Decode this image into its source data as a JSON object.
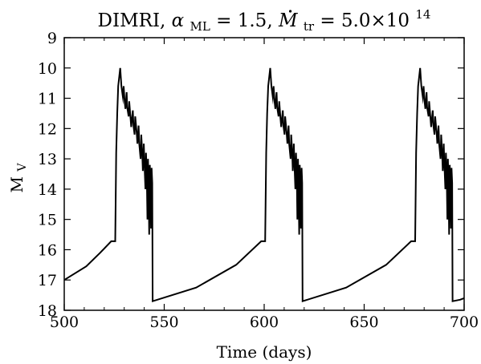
{
  "chart_data": {
    "type": "line",
    "title": {
      "prefix": "DIMRI, ",
      "alpha_sym": "α",
      "alpha_sub": "ML",
      "alpha_val": " = 1.5, ",
      "mdot_sym": "M",
      "mdot_sub": "tr",
      "mdot_val": " = 5.0×10",
      "mdot_exp": "14"
    },
    "xlabel": "Time (days)",
    "ylabel": {
      "main": "M",
      "sub": "V"
    },
    "xlim": [
      500,
      700
    ],
    "ylim": [
      9,
      18
    ],
    "y_inverted": true,
    "xticks": [
      "500",
      "550",
      "600",
      "650",
      "700"
    ],
    "yticks": [
      "9",
      "10",
      "11",
      "12",
      "13",
      "14",
      "15",
      "16",
      "17",
      "18"
    ],
    "grid": false,
    "line_color": "#000000",
    "series": [
      {
        "x": [
          500,
          511,
          518,
          523.5,
          524,
          525.5,
          526,
          526.5,
          527,
          528,
          528.6,
          529.3,
          529.7,
          530.2,
          530.6,
          531.2,
          531.5,
          532.2,
          532.5,
          533.2,
          533.5,
          534.3,
          534.6,
          535.2,
          535.5,
          536.3,
          536.6,
          537.2,
          537.5,
          538.2,
          538.5,
          539,
          539.3,
          539.8,
          540.1,
          540.6,
          540.9,
          541.3,
          541.6,
          541.9,
          542.2,
          542.5,
          542.8,
          543.1,
          543.4,
          543.7,
          544,
          544.2,
          566,
          586,
          598.5,
          599,
          600.5,
          601,
          601.5,
          602,
          603,
          603.6,
          604.3,
          604.7,
          605.2,
          605.6,
          606.2,
          606.5,
          607.2,
          607.5,
          608.2,
          608.5,
          609.3,
          609.6,
          610.2,
          610.5,
          611.3,
          611.6,
          612.2,
          612.5,
          613.2,
          613.5,
          614,
          614.3,
          614.8,
          615.1,
          615.6,
          615.9,
          616.3,
          616.6,
          616.9,
          617.2,
          617.5,
          617.8,
          618.1,
          618.4,
          618.7,
          619,
          619.2,
          641,
          661,
          673.5,
          674,
          675.5,
          676,
          676.5,
          677,
          678,
          678.6,
          679.3,
          679.7,
          680.2,
          680.6,
          681.2,
          681.5,
          682.2,
          682.5,
          683.2,
          683.5,
          684.3,
          684.6,
          685.2,
          685.5,
          686.3,
          686.6,
          687.2,
          687.5,
          688.2,
          688.5,
          689,
          689.3,
          689.8,
          690.1,
          690.6,
          690.9,
          691.3,
          691.6,
          691.9,
          692.2,
          692.5,
          692.8,
          693.1,
          693.4,
          693.7,
          694,
          694.2,
          698,
          700
        ],
        "y": [
          17.0,
          16.55,
          16.1,
          15.72,
          15.72,
          15.72,
          12.8,
          11.5,
          10.6,
          10.0,
          10.6,
          10.95,
          10.6,
          11.1,
          11.35,
          10.8,
          11.3,
          11.6,
          11.1,
          11.7,
          11.95,
          11.4,
          11.9,
          12.2,
          11.6,
          12.2,
          12.5,
          11.9,
          12.5,
          13.0,
          12.2,
          12.8,
          13.4,
          12.5,
          13.1,
          14.0,
          12.8,
          13.5,
          15.0,
          13.0,
          13.8,
          15.5,
          13.2,
          13.9,
          15.3,
          13.3,
          13.8,
          17.7,
          17.25,
          16.5,
          15.72,
          15.72,
          15.72,
          12.8,
          11.5,
          10.6,
          10.0,
          10.6,
          10.95,
          10.6,
          11.1,
          11.35,
          10.8,
          11.3,
          11.6,
          11.1,
          11.7,
          11.95,
          11.4,
          11.9,
          12.2,
          11.6,
          12.2,
          12.5,
          11.9,
          12.5,
          13.0,
          12.2,
          12.8,
          13.4,
          12.5,
          13.1,
          14.0,
          12.8,
          13.5,
          15.0,
          13.0,
          13.8,
          15.5,
          13.2,
          13.9,
          15.3,
          13.3,
          13.8,
          17.7,
          17.25,
          16.5,
          15.72,
          15.72,
          15.72,
          12.8,
          11.5,
          10.6,
          10.0,
          10.6,
          10.95,
          10.6,
          11.1,
          11.35,
          10.8,
          11.3,
          11.6,
          11.1,
          11.7,
          11.95,
          11.4,
          11.9,
          12.2,
          11.6,
          12.2,
          12.5,
          11.9,
          12.5,
          13.0,
          12.2,
          12.8,
          13.4,
          12.5,
          13.1,
          14.0,
          12.8,
          13.5,
          15.0,
          13.0,
          13.8,
          15.5,
          13.2,
          13.9,
          15.3,
          13.3,
          13.8,
          17.7,
          17.65,
          17.6
        ]
      }
    ]
  }
}
